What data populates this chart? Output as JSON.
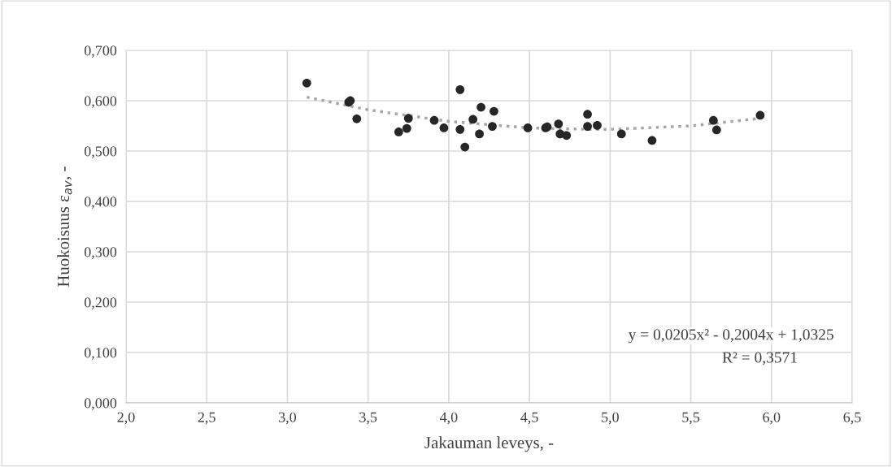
{
  "chart_data": {
    "type": "scatter",
    "xlabel": "Jakauman leveys, -",
    "ylabel": "Huokoisuus ε$_{av}$, -",
    "xlim": [
      2.0,
      6.5
    ],
    "ylim": [
      0.0,
      0.7
    ],
    "xticks": [
      {
        "value": 2.0,
        "label": "2,0"
      },
      {
        "value": 2.5,
        "label": "2,5"
      },
      {
        "value": 3.0,
        "label": "3,0"
      },
      {
        "value": 3.5,
        "label": "3,5"
      },
      {
        "value": 4.0,
        "label": "4,0"
      },
      {
        "value": 4.5,
        "label": "4,5"
      },
      {
        "value": 5.0,
        "label": "5,0"
      },
      {
        "value": 5.5,
        "label": "5,5"
      },
      {
        "value": 6.0,
        "label": "6,0"
      },
      {
        "value": 6.5,
        "label": "6,5"
      }
    ],
    "yticks": [
      {
        "value": 0.0,
        "label": "0,000"
      },
      {
        "value": 0.1,
        "label": "0,100"
      },
      {
        "value": 0.2,
        "label": "0,200"
      },
      {
        "value": 0.3,
        "label": "0,300"
      },
      {
        "value": 0.4,
        "label": "0,400"
      },
      {
        "value": 0.5,
        "label": "0,500"
      },
      {
        "value": 0.6,
        "label": "0,600"
      },
      {
        "value": 0.7,
        "label": "0,700"
      }
    ],
    "grid": true,
    "marker": "circle",
    "series": [
      {
        "color": "#262626",
        "x": [
          3.12,
          3.38,
          3.39,
          3.43,
          3.69,
          3.74,
          3.75,
          3.91,
          3.97,
          4.07,
          4.07,
          4.1,
          4.15,
          4.19,
          4.2,
          4.27,
          4.28,
          4.49,
          4.6,
          4.61,
          4.68,
          4.69,
          4.73,
          4.86,
          4.86,
          4.92,
          5.07,
          5.26,
          5.64,
          5.66,
          5.93
        ],
        "values": [
          0.635,
          0.597,
          0.6,
          0.564,
          0.538,
          0.545,
          0.565,
          0.561,
          0.546,
          0.543,
          0.622,
          0.508,
          0.563,
          0.534,
          0.587,
          0.549,
          0.579,
          0.546,
          0.546,
          0.548,
          0.554,
          0.534,
          0.531,
          0.573,
          0.549,
          0.551,
          0.534,
          0.521,
          0.561,
          0.542,
          0.571
        ]
      },
      {
        "type": "line",
        "color": "#a6a6a6",
        "line_style": "dotted",
        "marker": "none",
        "x": [
          3.12,
          3.5,
          4.0,
          4.5,
          4.89,
          5.0,
          5.5,
          5.93
        ],
        "values": [
          0.607,
          0.582,
          0.559,
          0.546,
          0.543,
          0.543,
          0.55,
          0.565
        ]
      }
    ],
    "annotations": [
      "y = 0,0205x² - 0,2004x + 1,0325",
      "R² = 0,3571"
    ]
  }
}
